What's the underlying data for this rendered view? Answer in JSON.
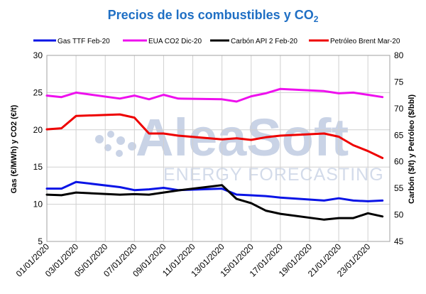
{
  "chart_data": {
    "type": "line",
    "title": "Precios de los combustibles y CO",
    "title_subscript": "2",
    "ylabel_left": "Gas (€/MWh) y CO2 (€/t)",
    "ylabel_right": "Carbón ($/t) y Petróleo ($/bbl)",
    "ylim_left": [
      5,
      30
    ],
    "ylim_right": [
      45,
      80
    ],
    "yticks_left": [
      "5",
      "10",
      "15",
      "20",
      "25",
      "30"
    ],
    "yticks_right": [
      "45",
      "50",
      "55",
      "60",
      "65",
      "70",
      "75",
      "80"
    ],
    "x_tick_labels": [
      "01/01/2020",
      "03/01/2020",
      "05/01/2020",
      "07/01/2020",
      "09/01/2020",
      "11/01/2020",
      "13/01/2020",
      "15/01/2020",
      "17/01/2020",
      "19/01/2020",
      "21/01/2020",
      "23/01/2020"
    ],
    "x": [
      "01/01/2020",
      "02/01/2020",
      "03/01/2020",
      "06/01/2020",
      "07/01/2020",
      "08/01/2020",
      "09/01/2020",
      "10/01/2020",
      "13/01/2020",
      "14/01/2020",
      "15/01/2020",
      "16/01/2020",
      "17/01/2020",
      "20/01/2020",
      "21/01/2020",
      "22/01/2020",
      "23/01/2020",
      "24/01/2020"
    ],
    "x_day": [
      1,
      2,
      3,
      6,
      7,
      8,
      9,
      10,
      13,
      14,
      15,
      16,
      17,
      20,
      21,
      22,
      23,
      24
    ],
    "x_range": [
      1,
      24.5
    ],
    "grid": true,
    "legend_position": "top",
    "series": [
      {
        "name": "Gas TTF Feb-20",
        "axis": "left",
        "color": "#0a14e6",
        "values": [
          12.1,
          12.1,
          13.0,
          12.3,
          11.9,
          12.0,
          12.2,
          11.9,
          12.1,
          11.3,
          11.2,
          11.1,
          10.9,
          10.5,
          10.8,
          10.5,
          10.4,
          10.5
        ]
      },
      {
        "name": "EUA CO2 Dic-20",
        "axis": "left",
        "color": "#ee10ee",
        "values": [
          24.6,
          24.4,
          25.0,
          24.2,
          24.6,
          24.1,
          24.7,
          24.2,
          24.1,
          23.8,
          24.5,
          24.9,
          25.5,
          25.2,
          24.9,
          25.0,
          24.7,
          24.4
        ]
      },
      {
        "name": "Carbón API 2 Feb-20",
        "axis": "right",
        "color": "#000000",
        "values": [
          53.8,
          53.7,
          54.2,
          53.8,
          53.9,
          53.8,
          54.2,
          54.6,
          55.6,
          53.0,
          52.2,
          50.8,
          50.2,
          49.1,
          49.4,
          49.4,
          50.3,
          49.7
        ]
      },
      {
        "name": "Petróleo Brent Mar-20",
        "axis": "right",
        "color": "#ee0000",
        "values": [
          66.1,
          66.3,
          68.6,
          68.9,
          68.3,
          65.3,
          65.3,
          64.9,
          64.2,
          64.4,
          64.1,
          64.6,
          64.9,
          65.3,
          64.7,
          63.1,
          62.0,
          60.7
        ]
      }
    ],
    "watermark": {
      "brand": "AleaSoft",
      "tagline": "ENERGY FORECASTING"
    }
  }
}
